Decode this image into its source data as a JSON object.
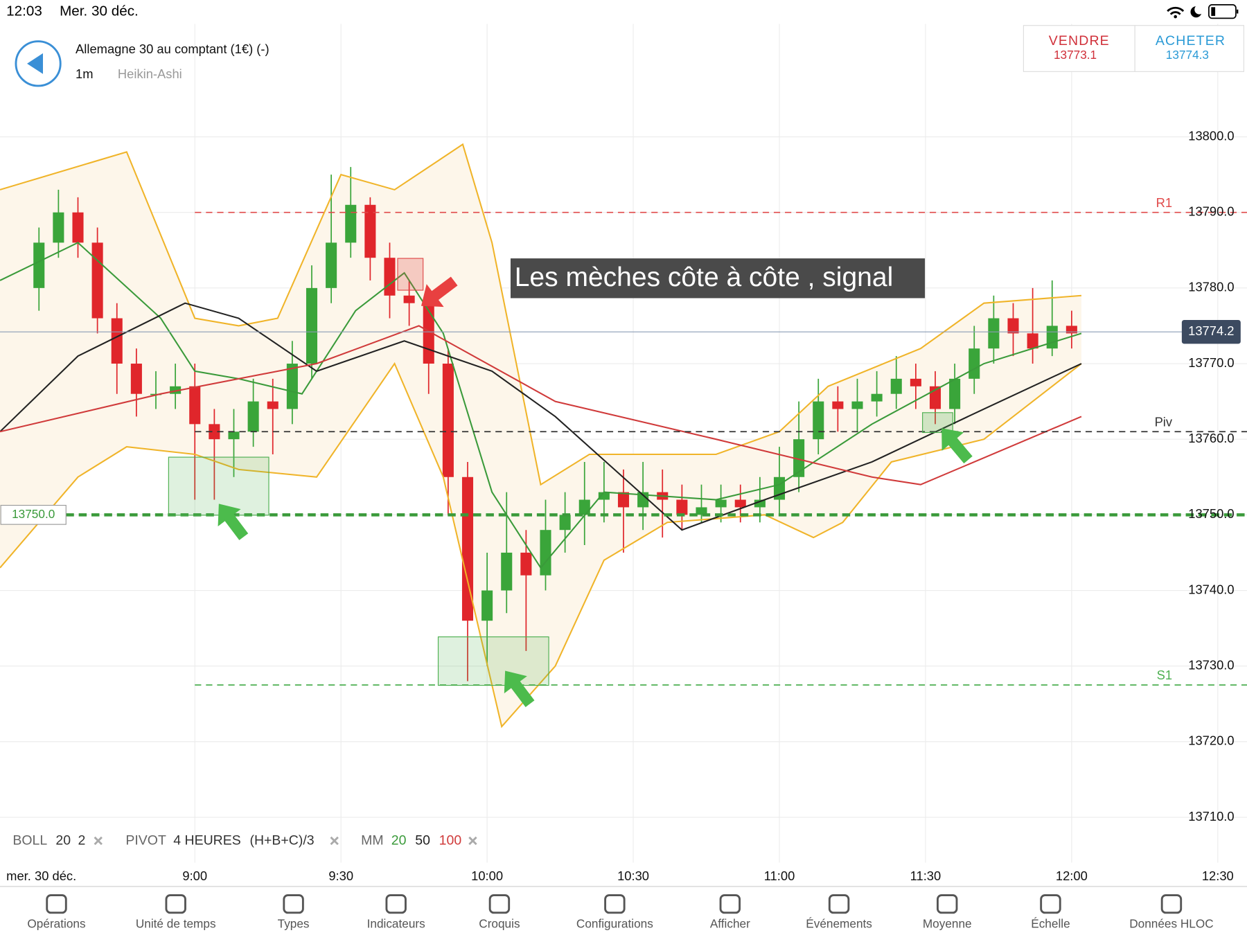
{
  "status_bar": {
    "time": "12:03",
    "date": "Mer. 30 déc."
  },
  "header": {
    "instrument": "Allemagne 30 au comptant (1€) (-)",
    "timeframe": "1m",
    "chart_type": "Heikin-Ashi"
  },
  "quotes": {
    "sell": {
      "label": "VENDRE",
      "price": 13773.1,
      "color": "#d0303a"
    },
    "buy": {
      "label": "ACHETER",
      "price": 13774.3,
      "color": "#2a9ad6"
    }
  },
  "chart_data": {
    "type": "candlestick",
    "up_color": "#3aa53a",
    "down_color": "#e0262b",
    "x": [
      508,
      512,
      516,
      520,
      524,
      528,
      532,
      536,
      540,
      544,
      548,
      552,
      556,
      560,
      564,
      568,
      572,
      576,
      580,
      584,
      588,
      592,
      596,
      600,
      604,
      608,
      612,
      616,
      620,
      624,
      628,
      632,
      636,
      640,
      644,
      648,
      652,
      656,
      660,
      664,
      668,
      672,
      676,
      680,
      684,
      688,
      692,
      696,
      700,
      704,
      708,
      712,
      716,
      720
    ],
    "open": [
      13780,
      13786,
      13790,
      13786,
      13776,
      13770,
      13766,
      13766,
      13767,
      13762,
      13760,
      13761,
      13765,
      13764,
      13770,
      13780,
      13786,
      13791,
      13784,
      13779,
      13778,
      13770,
      13755,
      13736,
      13740,
      13745,
      13742,
      13748,
      13750,
      13752,
      13753,
      13751,
      13753,
      13752,
      13750,
      13751,
      13752,
      13751,
      13752,
      13755,
      13760,
      13765,
      13764,
      13765,
      13766,
      13768,
      13767,
      13764,
      13768,
      13772,
      13776,
      13774,
      13772,
      13775
    ],
    "high": [
      13788,
      13793,
      13792,
      13788,
      13778,
      13772,
      13769,
      13770,
      13770,
      13764,
      13764,
      13768,
      13768,
      13773,
      13783,
      13795,
      13796,
      13792,
      13786,
      13781,
      13779,
      13772,
      13757,
      13745,
      13753,
      13748,
      13752,
      13753,
      13757,
      13757,
      13756,
      13757,
      13756,
      13754,
      13754,
      13754,
      13754,
      13755,
      13759,
      13765,
      13768,
      13767,
      13768,
      13769,
      13771,
      13770,
      13769,
      13770,
      13775,
      13779,
      13778,
      13780,
      13781,
      13777
    ],
    "low": [
      13777,
      13784,
      13784,
      13774,
      13766,
      13763,
      13764,
      13764,
      13752,
      13752,
      13755,
      13759,
      13758,
      13762,
      13768,
      13778,
      13784,
      13781,
      13776,
      13775,
      13766,
      13750,
      13728,
      13730,
      13737,
      13732,
      13740,
      13745,
      13746,
      13749,
      13745,
      13748,
      13747,
      13748,
      13749,
      13749,
      13749,
      13749,
      13750,
      13753,
      13758,
      13761,
      13761,
      13763,
      13764,
      13764,
      13762,
      13762,
      13766,
      13770,
      13771,
      13770,
      13771,
      13772
    ],
    "close": [
      13786,
      13790,
      13786,
      13776,
      13770,
      13766,
      13766,
      13767,
      13762,
      13760,
      13761,
      13765,
      13764,
      13770,
      13780,
      13786,
      13791,
      13784,
      13779,
      13778,
      13770,
      13755,
      13736,
      13740,
      13745,
      13742,
      13748,
      13750,
      13752,
      13753,
      13751,
      13753,
      13752,
      13750,
      13751,
      13752,
      13751,
      13752,
      13755,
      13760,
      13765,
      13764,
      13765,
      13766,
      13768,
      13767,
      13764,
      13768,
      13772,
      13776,
      13774,
      13772,
      13775,
      13774
    ],
    "lines": [
      {
        "color": "#f0b429",
        "x": [
          500,
          526,
          540,
          549,
          557,
          570,
          581,
          595,
          601,
          611,
          621,
          630,
          647,
          660,
          670,
          689,
          702,
          722
        ],
        "values": [
          13793,
          13798,
          13776,
          13775,
          13776,
          13795,
          13793,
          13799,
          13786,
          13754,
          13758,
          13758,
          13758,
          13761,
          13767,
          13772,
          13778,
          13779
        ]
      },
      {
        "color": "#f0b429",
        "x": [
          500,
          516,
          526,
          540,
          549,
          565,
          581,
          591,
          603,
          614,
          624,
          637,
          657,
          667,
          673,
          683,
          702,
          722
        ],
        "values": [
          13743,
          13755,
          13759,
          13758,
          13756,
          13755,
          13770,
          13755,
          13722,
          13730,
          13744,
          13749,
          13750,
          13747,
          13749,
          13757,
          13760,
          13770
        ]
      },
      {
        "color": "#3a9a3a",
        "x": [
          500,
          516,
          533,
          540,
          549,
          562,
          573,
          583,
          591,
          601,
          611,
          624,
          647,
          660,
          679,
          702,
          722
        ],
        "values": [
          13781,
          13786,
          13776,
          13769,
          13768,
          13766,
          13777,
          13782,
          13774,
          13753,
          13743,
          13753,
          13752,
          13754,
          13762,
          13770,
          13774
        ]
      },
      {
        "color": "#222222",
        "x": [
          500,
          516,
          538,
          549,
          565,
          583,
          601,
          614,
          640,
          657,
          679,
          702,
          722
        ],
        "values": [
          13761,
          13771,
          13778,
          13776,
          13769,
          13773,
          13769,
          13763,
          13748,
          13752,
          13757,
          13764,
          13770
        ]
      },
      {
        "color": "#d03a3a",
        "x": [
          500,
          533,
          565,
          586,
          614,
          647,
          679,
          689,
          722
        ],
        "values": [
          13761,
          13766,
          13770,
          13775,
          13765,
          13760,
          13755,
          13754,
          13763
        ]
      }
    ],
    "band_fill": "#fdf6ea",
    "levels": [
      {
        "name": "R1",
        "value": 13790,
        "start": 540,
        "color": "#e04848"
      },
      {
        "name": "Piv",
        "value": 13761,
        "start": 540,
        "color": "#333333"
      },
      {
        "name": "S1",
        "value": 13727.5,
        "start": 540,
        "color": "#4caf50"
      }
    ],
    "marked_level": {
      "value": 13750,
      "label": "13750.0",
      "color": "#3a9a3a"
    },
    "price_line": {
      "value": 13774.2,
      "color": "#8a9bb5"
    },
    "annotation": "Les mèches côte à côte , signal",
    "date_label": "mer. 30 déc.",
    "xlim": [
      500,
      756
    ],
    "xticks": [
      {
        "value": 540,
        "label": "9:00"
      },
      {
        "value": 570,
        "label": "9:30"
      },
      {
        "value": 600,
        "label": "10:00"
      },
      {
        "value": 630,
        "label": "10:30"
      },
      {
        "value": 660,
        "label": "11:00"
      },
      {
        "value": 690,
        "label": "11:30"
      },
      {
        "value": 720,
        "label": "12:00"
      },
      {
        "value": 750,
        "label": "12:30"
      }
    ],
    "ylim": [
      13704,
      13806
    ],
    "yticks": [
      {
        "value": 13710,
        "label": "13710.0"
      },
      {
        "value": 13720,
        "label": "13720.0"
      },
      {
        "value": 13730,
        "label": "13730.0"
      },
      {
        "value": 13740,
        "label": "13740.0"
      },
      {
        "value": 13750,
        "label": "13750.0"
      },
      {
        "value": 13760,
        "label": "13760.0"
      },
      {
        "value": 13770,
        "label": "13770.0"
      },
      {
        "value": 13780,
        "label": "13780.0"
      },
      {
        "value": 13790,
        "label": "13790.0"
      },
      {
        "value": 13800,
        "label": "13800.0"
      }
    ],
    "grid": true,
    "indicators": {
      "boll": {
        "name": "BOLL",
        "params": [
          20,
          2
        ]
      },
      "pivot": {
        "name": "PIVOT",
        "params": [
          "4 HEURES",
          "(H+B+C)/3"
        ]
      },
      "mm": {
        "name": "MM",
        "params": [
          20,
          50,
          100
        ],
        "colors": [
          "#3a9a3a",
          "#222222",
          "#d03a3a"
        ]
      }
    }
  },
  "toolbar": {
    "items": [
      "Opérations",
      "Unité de temps",
      "Types",
      "Indicateurs",
      "Croquis",
      "Configurations",
      "Afficher",
      "Événements",
      "Moyenne",
      "Échelle",
      "Données HLOC"
    ]
  }
}
